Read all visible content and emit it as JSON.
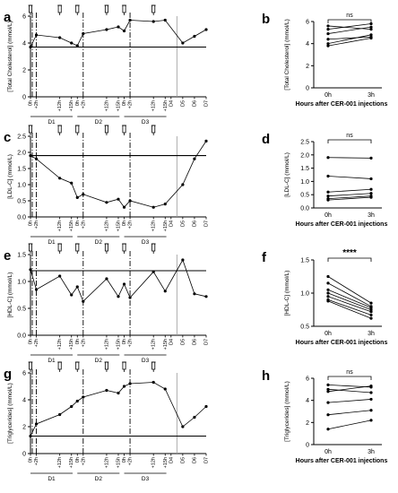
{
  "figure": {
    "panels": [
      "a",
      "b",
      "c",
      "d",
      "e",
      "f",
      "g",
      "h"
    ],
    "day_labels": [
      "D1",
      "D2",
      "D3"
    ],
    "time_ticks": [
      "0h",
      "+2h",
      "+12h",
      "+15h",
      "0h",
      "+2h",
      "+12h",
      "+15h",
      "0h",
      "+2h",
      "+12h",
      "+15h",
      "D4",
      "D5",
      "D6",
      "D7"
    ],
    "b_xticks": [
      "0h",
      "3h"
    ],
    "b_xlabel": "Hours after CER-001 injections"
  },
  "chart_data": [
    {
      "panel": "a",
      "type": "line",
      "ylabel": "[Total Cholesterol] (mmol/L)",
      "ylim": [
        0,
        6
      ],
      "yticks": [
        0,
        2,
        4,
        6
      ],
      "reference_line": 3.7,
      "x": [
        0,
        0.5,
        2.5,
        3.5,
        4,
        4.5,
        6.5,
        7.5,
        8,
        8.5,
        10.5,
        11.5,
        13,
        14,
        15
      ],
      "values": [
        3.7,
        4.6,
        4.4,
        4.0,
        3.8,
        4.7,
        5.0,
        5.2,
        4.9,
        5.7,
        5.6,
        5.7,
        4.0,
        4.5,
        5.0
      ]
    },
    {
      "panel": "b",
      "type": "line",
      "annotation": "ns",
      "ylabel": "[Total Cholesterol] (mmol/L)",
      "xlabel": "Hours after CER-001 injections",
      "categories": [
        "0h",
        "3h"
      ],
      "ylim": [
        0,
        6
      ],
      "yticks": [
        0,
        2,
        4,
        6
      ],
      "series": [
        {
          "values": [
            5.6,
            5.3
          ]
        },
        {
          "values": [
            5.3,
            5.8
          ]
        },
        {
          "values": [
            4.9,
            5.5
          ]
        },
        {
          "values": [
            4.4,
            4.6
          ]
        },
        {
          "values": [
            4.0,
            4.8
          ]
        },
        {
          "values": [
            3.8,
            4.5
          ]
        }
      ]
    },
    {
      "panel": "c",
      "type": "line",
      "ylabel": "[LDL-C] (mmol/L)",
      "ylim": [
        0,
        2.5
      ],
      "yticks": [
        0.0,
        0.5,
        1.0,
        1.5,
        2.0,
        2.5
      ],
      "reference_line": 1.9,
      "x": [
        0,
        0.5,
        2.5,
        3.5,
        4,
        4.5,
        6.5,
        7.5,
        8,
        8.5,
        10.5,
        11.5,
        13,
        14,
        15
      ],
      "values": [
        1.9,
        1.8,
        1.2,
        1.05,
        0.6,
        0.7,
        0.45,
        0.55,
        0.3,
        0.5,
        0.3,
        0.4,
        1.0,
        1.8,
        2.35
      ]
    },
    {
      "panel": "d",
      "type": "line",
      "annotation": "ns",
      "ylabel": "[LDL-C] (mmol/L)",
      "xlabel": "Hours after CER-001 injections",
      "categories": [
        "0h",
        "3h"
      ],
      "ylim": [
        0,
        2.5
      ],
      "yticks": [
        0.0,
        0.5,
        1.0,
        1.5,
        2.0,
        2.5
      ],
      "series": [
        {
          "values": [
            1.9,
            1.88
          ]
        },
        {
          "values": [
            1.2,
            1.1
          ]
        },
        {
          "values": [
            0.6,
            0.7
          ]
        },
        {
          "values": [
            0.45,
            0.55
          ]
        },
        {
          "values": [
            0.35,
            0.45
          ]
        },
        {
          "values": [
            0.3,
            0.4
          ]
        }
      ]
    },
    {
      "panel": "e",
      "type": "line",
      "ylabel": "[HDL-C] (mmol/L)",
      "ylim": [
        0,
        1.5
      ],
      "yticks": [
        0.0,
        0.5,
        1.0,
        1.5
      ],
      "reference_line": 1.2,
      "x": [
        0,
        0.5,
        2.5,
        3.5,
        4,
        4.5,
        6.5,
        7.5,
        8,
        8.5,
        10.5,
        11.5,
        13,
        14,
        15
      ],
      "values": [
        1.22,
        0.85,
        1.1,
        0.75,
        0.9,
        0.63,
        1.05,
        0.72,
        0.95,
        0.7,
        1.18,
        0.82,
        1.4,
        0.77,
        0.72
      ]
    },
    {
      "panel": "f",
      "type": "line",
      "annotation": "****",
      "ylabel": "[HDL-C] (mmol/L)",
      "xlabel": "Hours after CER-001 injections",
      "categories": [
        "0h",
        "3h"
      ],
      "ylim": [
        0.5,
        1.5
      ],
      "yticks": [
        0.5,
        1.0,
        1.5
      ],
      "series": [
        {
          "values": [
            1.25,
            0.85
          ]
        },
        {
          "values": [
            1.15,
            0.8
          ]
        },
        {
          "values": [
            1.05,
            0.78
          ]
        },
        {
          "values": [
            1.0,
            0.75
          ]
        },
        {
          "values": [
            0.95,
            0.72
          ]
        },
        {
          "values": [
            0.9,
            0.67
          ]
        },
        {
          "values": [
            0.88,
            0.62
          ]
        }
      ]
    },
    {
      "panel": "g",
      "type": "line",
      "ylabel": "[Triglycerides] (mmol/L)",
      "ylim": [
        0,
        6
      ],
      "yticks": [
        0,
        2,
        4,
        6
      ],
      "reference_line": 1.3,
      "x": [
        0,
        0.5,
        2.5,
        3.5,
        4,
        4.5,
        6.5,
        7.5,
        8,
        8.5,
        10.5,
        11.5,
        13,
        14,
        15
      ],
      "values": [
        1.3,
        2.2,
        2.9,
        3.5,
        3.9,
        4.2,
        4.7,
        4.5,
        5.0,
        5.2,
        5.3,
        4.8,
        2.0,
        2.7,
        3.5
      ]
    },
    {
      "panel": "h",
      "type": "line",
      "annotation": "ns",
      "ylabel": "[Triglycerides] (mmol/L)",
      "xlabel": "Hours after CER-001 injections",
      "categories": [
        "0h",
        "3h"
      ],
      "ylim": [
        0,
        6
      ],
      "yticks": [
        0,
        2,
        4,
        6
      ],
      "series": [
        {
          "values": [
            5.4,
            5.2
          ]
        },
        {
          "values": [
            5.0,
            4.7
          ]
        },
        {
          "values": [
            4.8,
            5.3
          ]
        },
        {
          "values": [
            3.8,
            4.1
          ]
        },
        {
          "values": [
            2.7,
            3.1
          ]
        },
        {
          "values": [
            1.4,
            2.2
          ]
        }
      ]
    }
  ]
}
